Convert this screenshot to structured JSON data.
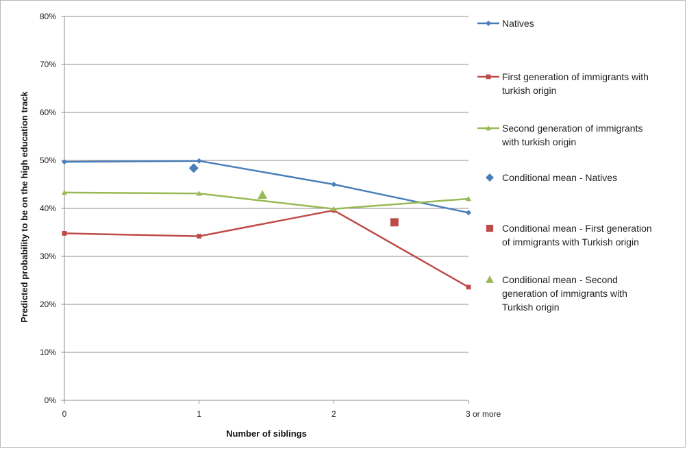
{
  "chart_data": {
    "type": "line",
    "xlabel": "Number of siblings",
    "ylabel": "Predicted probability to be on the high education track",
    "categories": [
      "0",
      "1",
      "2",
      "3 or more"
    ],
    "y_ticks": [
      "0%",
      "10%",
      "20%",
      "30%",
      "40%",
      "50%",
      "60%",
      "70%",
      "80%"
    ],
    "ylim": [
      0,
      80
    ],
    "grid": "horizontal",
    "legend_position": "right",
    "series": [
      {
        "name": "Natives",
        "kind": "line",
        "marker": "diamond",
        "color": "#4a7ebb",
        "values": [
          49.7,
          49.9,
          45.0,
          39.1
        ]
      },
      {
        "name": "First generation of immigrants with turkish origin",
        "kind": "line",
        "marker": "square",
        "color": "#be4b48",
        "values": [
          34.8,
          34.2,
          39.6,
          23.6
        ]
      },
      {
        "name": "Second generation of immigrants with turkish origin",
        "kind": "line",
        "marker": "triangle",
        "color": "#98b954",
        "values": [
          43.3,
          43.1,
          39.9,
          42.0
        ]
      },
      {
        "name": "Conditional mean - Natives",
        "kind": "point",
        "marker": "diamond",
        "color": "#4a7ebb",
        "x": 0.96,
        "value": 48.4
      },
      {
        "name": "Conditional mean - First generation of immigrants with Turkish origin",
        "kind": "point",
        "marker": "square",
        "color": "#be4b48",
        "x": 2.45,
        "value": 37.1
      },
      {
        "name": "Conditional mean - Second generation of immigrants with Turkish origin",
        "kind": "point",
        "marker": "triangle",
        "color": "#98b954",
        "x": 1.47,
        "value": 42.8
      }
    ],
    "legend_lines": [
      [
        "Natives"
      ],
      [
        "First generation of immigrants with",
        "turkish origin"
      ],
      [
        "Second generation of immigrants",
        "with turkish origin"
      ],
      [
        "Conditional mean - Natives"
      ],
      [
        "Conditional mean - First generation",
        "of immigrants with Turkish origin"
      ],
      [
        "Conditional mean - Second",
        "generation of immigrants with",
        "Turkish origin"
      ]
    ]
  }
}
